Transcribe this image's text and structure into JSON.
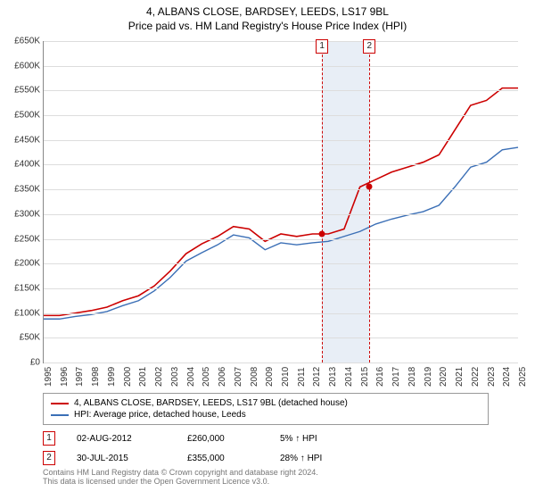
{
  "title": "4, ALBANS CLOSE, BARDSEY, LEEDS, LS17 9BL",
  "subtitle": "Price paid vs. HM Land Registry's House Price Index (HPI)",
  "chart": {
    "type": "line",
    "x_start": 1995,
    "x_end": 2025,
    "y_min": 0,
    "y_max": 650000,
    "y_step": 50000,
    "y_prefix": "£",
    "y_suffix": "K",
    "background_color": "#ffffff",
    "grid_color": "#dddddd",
    "axis_color": "#888888",
    "label_fontsize": 10,
    "title_fontsize": 12,
    "series": [
      {
        "name": "4, ALBANS CLOSE, BARDSEY, LEEDS, LS17 9BL (detached house)",
        "color": "#cc0000",
        "line_width": 1.6,
        "data": [
          [
            1995,
            95000
          ],
          [
            1996,
            95000
          ],
          [
            1997,
            100000
          ],
          [
            1998,
            105000
          ],
          [
            1999,
            112000
          ],
          [
            2000,
            125000
          ],
          [
            2001,
            135000
          ],
          [
            2002,
            155000
          ],
          [
            2003,
            185000
          ],
          [
            2004,
            220000
          ],
          [
            2005,
            240000
          ],
          [
            2006,
            255000
          ],
          [
            2007,
            275000
          ],
          [
            2008,
            270000
          ],
          [
            2009,
            245000
          ],
          [
            2010,
            260000
          ],
          [
            2011,
            255000
          ],
          [
            2012,
            260000
          ],
          [
            2013,
            260000
          ],
          [
            2014,
            270000
          ],
          [
            2015,
            355000
          ],
          [
            2016,
            370000
          ],
          [
            2017,
            385000
          ],
          [
            2018,
            395000
          ],
          [
            2019,
            405000
          ],
          [
            2020,
            420000
          ],
          [
            2021,
            470000
          ],
          [
            2022,
            520000
          ],
          [
            2023,
            530000
          ],
          [
            2024,
            555000
          ],
          [
            2025,
            555000
          ]
        ]
      },
      {
        "name": "HPI: Average price, detached house, Leeds",
        "color": "#3b6fb6",
        "line_width": 1.4,
        "data": [
          [
            1995,
            88000
          ],
          [
            1996,
            88000
          ],
          [
            1997,
            93000
          ],
          [
            1998,
            97000
          ],
          [
            1999,
            103000
          ],
          [
            2000,
            115000
          ],
          [
            2001,
            125000
          ],
          [
            2002,
            145000
          ],
          [
            2003,
            172000
          ],
          [
            2004,
            205000
          ],
          [
            2005,
            222000
          ],
          [
            2006,
            238000
          ],
          [
            2007,
            258000
          ],
          [
            2008,
            252000
          ],
          [
            2009,
            228000
          ],
          [
            2010,
            242000
          ],
          [
            2011,
            238000
          ],
          [
            2012,
            242000
          ],
          [
            2013,
            245000
          ],
          [
            2014,
            255000
          ],
          [
            2015,
            265000
          ],
          [
            2016,
            280000
          ],
          [
            2017,
            290000
          ],
          [
            2018,
            298000
          ],
          [
            2019,
            305000
          ],
          [
            2020,
            318000
          ],
          [
            2021,
            355000
          ],
          [
            2022,
            395000
          ],
          [
            2023,
            405000
          ],
          [
            2024,
            430000
          ],
          [
            2025,
            435000
          ]
        ]
      }
    ],
    "highlight_band": {
      "x_start": 2012.6,
      "x_end": 2015.6,
      "color": "#e8eef6"
    },
    "markers": [
      {
        "label": "1",
        "x": 2012.6,
        "point_y": 260000
      },
      {
        "label": "2",
        "x": 2015.6,
        "point_y": 355000
      }
    ]
  },
  "sales": [
    {
      "marker": "1",
      "date": "02-AUG-2012",
      "price": "£260,000",
      "pct": "5% ↑ HPI"
    },
    {
      "marker": "2",
      "date": "30-JUL-2015",
      "price": "£355,000",
      "pct": "28% ↑ HPI"
    }
  ],
  "footer": {
    "line1": "Contains HM Land Registry data © Crown copyright and database right 2024.",
    "line2": "This data is licensed under the Open Government Licence v3.0."
  }
}
